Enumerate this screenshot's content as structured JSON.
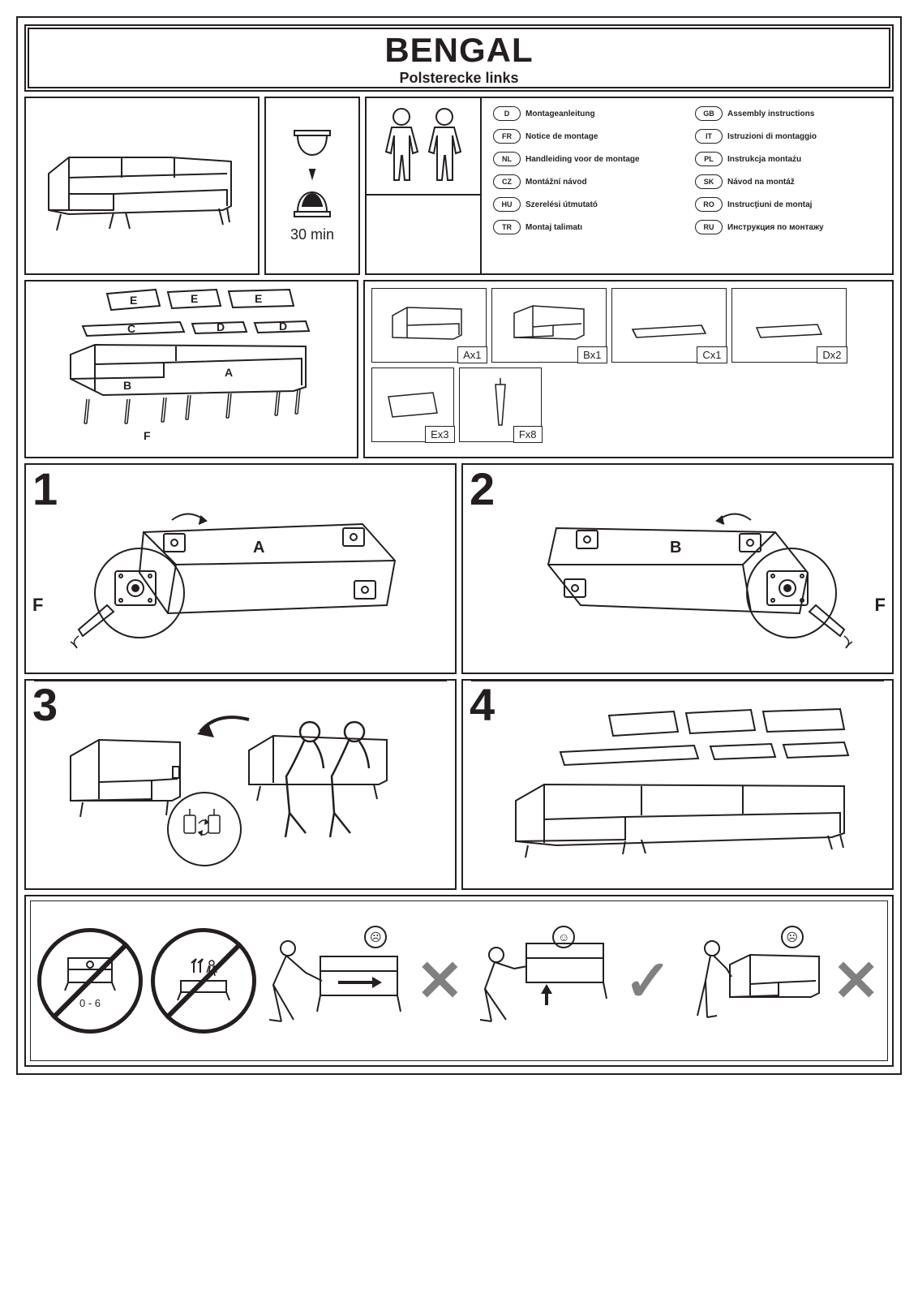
{
  "title": "BENGAL",
  "subtitle": "Polsterecke links",
  "time_label": "30 min",
  "languages_left": [
    {
      "code": "D",
      "text": "Montageanleitung"
    },
    {
      "code": "FR",
      "text": "Notice de montage"
    },
    {
      "code": "NL",
      "text": "Handleiding voor de montage"
    },
    {
      "code": "CZ",
      "text": "Montážní návod"
    },
    {
      "code": "HU",
      "text": "Szerelési útmutató"
    },
    {
      "code": "TR",
      "text": "Montaj talimatı"
    }
  ],
  "languages_right": [
    {
      "code": "GB",
      "text": "Assembly instructions"
    },
    {
      "code": "IT",
      "text": "Istruzioni di montaggio"
    },
    {
      "code": "PL",
      "text": "Instrukcja montażu"
    },
    {
      "code": "SK",
      "text": "Návod na montáž"
    },
    {
      "code": "RO",
      "text": "Instrucţiuni de montaj"
    },
    {
      "code": "RU",
      "text": "Инструкция по монтажу"
    }
  ],
  "cushion_labels": {
    "E": "E",
    "C": "C",
    "D": "D",
    "B": "B",
    "A": "A",
    "F": "F"
  },
  "parts": [
    {
      "label": "Ax1"
    },
    {
      "label": "Bx1"
    },
    {
      "label": "Cx1"
    },
    {
      "label": "Dx2"
    },
    {
      "label": "Ex3"
    },
    {
      "label": "Fx8"
    }
  ],
  "steps": [
    {
      "num": "1",
      "letter": "A",
      "side": "F"
    },
    {
      "num": "2",
      "letter": "B",
      "side": "F"
    },
    {
      "num": "3"
    },
    {
      "num": "4"
    }
  ],
  "warning_age": "0 - 6",
  "colors": {
    "ink": "#231f20",
    "grey": "#808080",
    "bg": "#ffffff"
  }
}
